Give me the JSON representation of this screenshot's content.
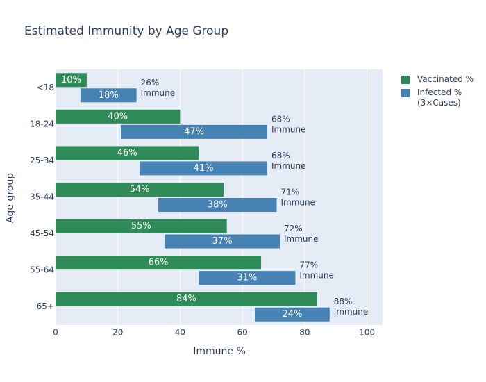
{
  "chart_data": {
    "type": "bar",
    "orientation": "horizontal",
    "title": "Estimated Immunity by Age Group",
    "x_label": "Immune %",
    "y_label": "Age group",
    "categories": [
      "<18",
      "18-24",
      "25-34",
      "35-44",
      "45-54",
      "55-64",
      "65+"
    ],
    "series": [
      {
        "name": "Vaccinated %",
        "color": "#2e8b57",
        "values": [
          10,
          40,
          46,
          54,
          55,
          66,
          84
        ],
        "value_labels": [
          "10%",
          "40%",
          "46%",
          "54%",
          "55%",
          "66%",
          "84%"
        ]
      },
      {
        "name": "Infected %\n(3×Cases)",
        "color": "#4682b4",
        "values": [
          18,
          47,
          41,
          38,
          37,
          31,
          24
        ],
        "value_labels": [
          "18%",
          "47%",
          "41%",
          "38%",
          "37%",
          "31%",
          "24%"
        ]
      }
    ],
    "immune": {
      "text": "Immune",
      "values": [
        26,
        68,
        68,
        71,
        72,
        77,
        88
      ],
      "value_labels": [
        "26%",
        "68%",
        "68%",
        "71%",
        "72%",
        "77%",
        "88%"
      ]
    },
    "xlim": [
      0,
      105
    ],
    "xticks": [
      0,
      20,
      40,
      60,
      80,
      100
    ],
    "grid": true
  }
}
